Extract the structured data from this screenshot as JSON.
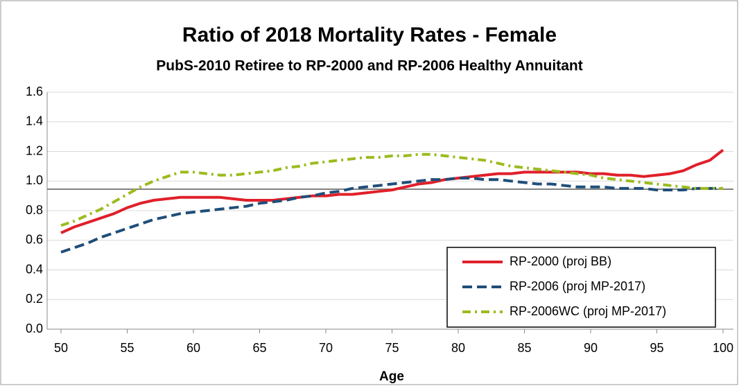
{
  "chart_data": {
    "type": "line",
    "title": "Ratio of 2018 Mortality Rates - Female",
    "subtitle": "PubS-2010 Retiree to RP-2000 and RP-2006 Healthy Annuitant",
    "x_label": "Age",
    "x": [
      50,
      51,
      52,
      53,
      54,
      55,
      56,
      57,
      58,
      59,
      60,
      61,
      62,
      63,
      64,
      65,
      66,
      67,
      68,
      69,
      70,
      71,
      72,
      73,
      74,
      75,
      76,
      77,
      78,
      79,
      80,
      81,
      82,
      83,
      84,
      85,
      86,
      87,
      88,
      89,
      90,
      91,
      92,
      93,
      94,
      95,
      96,
      97,
      98,
      99,
      100
    ],
    "series": [
      {
        "name": "RP-2000 (proj BB)",
        "color": "#e0202a",
        "dash": "solid",
        "values": [
          0.65,
          0.69,
          0.72,
          0.75,
          0.78,
          0.82,
          0.85,
          0.87,
          0.88,
          0.89,
          0.89,
          0.89,
          0.89,
          0.88,
          0.87,
          0.87,
          0.87,
          0.88,
          0.89,
          0.9,
          0.9,
          0.91,
          0.91,
          0.92,
          0.93,
          0.94,
          0.96,
          0.98,
          0.99,
          1.01,
          1.02,
          1.03,
          1.04,
          1.05,
          1.05,
          1.06,
          1.06,
          1.06,
          1.06,
          1.06,
          1.05,
          1.05,
          1.04,
          1.04,
          1.03,
          1.04,
          1.05,
          1.07,
          1.11,
          1.14,
          1.21
        ]
      },
      {
        "name": "RP-2006 (proj MP-2017)",
        "color": "#1f4e79",
        "dash": "dash",
        "values": [
          0.52,
          0.55,
          0.58,
          0.62,
          0.65,
          0.68,
          0.71,
          0.74,
          0.76,
          0.78,
          0.79,
          0.8,
          0.81,
          0.82,
          0.83,
          0.85,
          0.86,
          0.87,
          0.89,
          0.9,
          0.92,
          0.93,
          0.95,
          0.96,
          0.97,
          0.98,
          0.99,
          1.0,
          1.01,
          1.01,
          1.02,
          1.02,
          1.01,
          1.01,
          1.0,
          0.99,
          0.98,
          0.98,
          0.97,
          0.96,
          0.96,
          0.96,
          0.95,
          0.95,
          0.95,
          0.94,
          0.94,
          0.94,
          0.95,
          0.95,
          0.95
        ]
      },
      {
        "name": "RP-2006WC (proj MP-2017)",
        "color": "#9bbb1e",
        "dash": "dashdot",
        "values": [
          0.7,
          0.73,
          0.77,
          0.81,
          0.86,
          0.91,
          0.96,
          1.0,
          1.03,
          1.06,
          1.06,
          1.05,
          1.04,
          1.04,
          1.05,
          1.06,
          1.07,
          1.09,
          1.1,
          1.12,
          1.13,
          1.14,
          1.15,
          1.16,
          1.16,
          1.17,
          1.17,
          1.18,
          1.18,
          1.17,
          1.16,
          1.15,
          1.14,
          1.12,
          1.1,
          1.09,
          1.08,
          1.07,
          1.06,
          1.05,
          1.04,
          1.02,
          1.01,
          1.0,
          0.99,
          0.98,
          0.97,
          0.96,
          0.95,
          0.95,
          0.95
        ]
      }
    ],
    "reference_line": 0.945,
    "xlim": [
      50,
      100
    ],
    "xticks": [
      50,
      55,
      60,
      65,
      70,
      75,
      80,
      85,
      90,
      95,
      100
    ],
    "ylim": [
      0,
      1.6
    ],
    "yticks": [
      {
        "value": 0,
        "label": "0.0"
      },
      {
        "value": 0.2,
        "label": "0.2"
      },
      {
        "value": 0.4,
        "label": "0.4"
      },
      {
        "value": 0.6,
        "label": "0.6"
      },
      {
        "value": 0.8,
        "label": "0.8"
      },
      {
        "value": 1,
        "label": "1.0"
      },
      {
        "value": 1.2,
        "label": "1.2"
      },
      {
        "value": 1.4,
        "label": "1.4"
      },
      {
        "value": 1.6,
        "label": "1.6"
      }
    ],
    "grid": true,
    "legend": "lower right"
  }
}
